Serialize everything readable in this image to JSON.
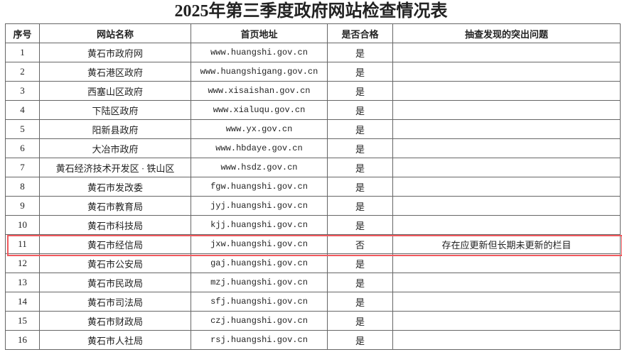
{
  "title": "2025年第三季度政府网站检查情况表",
  "headers": [
    "序号",
    "网站名称",
    "首页地址",
    "是否合格",
    "抽查发现的突出问题"
  ],
  "rows": [
    [
      "1",
      "黄石市政府网",
      "www.huangshi.gov.cn",
      "是",
      ""
    ],
    [
      "2",
      "黄石港区政府",
      "www.huangshigang.gov.cn",
      "是",
      ""
    ],
    [
      "3",
      "西塞山区政府",
      "www.xisaishan.gov.cn",
      "是",
      ""
    ],
    [
      "4",
      "下陆区政府",
      "www.xialuqu.gov.cn",
      "是",
      ""
    ],
    [
      "5",
      "阳新县政府",
      "www.yx.gov.cn",
      "是",
      ""
    ],
    [
      "6",
      "大冶市政府",
      "www.hbdaye.gov.cn",
      "是",
      ""
    ],
    [
      "7",
      "黄石经济技术开发区 · 铁山区",
      "www.hsdz.gov.cn",
      "是",
      ""
    ],
    [
      "8",
      "黄石市发改委",
      "fgw.huangshi.gov.cn",
      "是",
      ""
    ],
    [
      "9",
      "黄石市教育局",
      "jyj.huangshi.gov.cn",
      "是",
      ""
    ],
    [
      "10",
      "黄石市科技局",
      "kjj.huangshi.gov.cn",
      "是",
      ""
    ],
    [
      "11",
      "黄石市经信局",
      "jxw.huangshi.gov.cn",
      "否",
      "存在应更新但长期未更新的栏目"
    ],
    [
      "12",
      "黄石市公安局",
      "gaj.huangshi.gov.cn",
      "是",
      ""
    ],
    [
      "13",
      "黄石市民政局",
      "mzj.huangshi.gov.cn",
      "是",
      ""
    ],
    [
      "14",
      "黄石市司法局",
      "sfj.huangshi.gov.cn",
      "是",
      ""
    ],
    [
      "15",
      "黄石市财政局",
      "czj.huangshi.gov.cn",
      "是",
      ""
    ],
    [
      "16",
      "黄石市人社局",
      "rsj.huangshi.gov.cn",
      "是",
      ""
    ]
  ],
  "highlighted_row": "11",
  "highlight_color": "#f05a5f"
}
